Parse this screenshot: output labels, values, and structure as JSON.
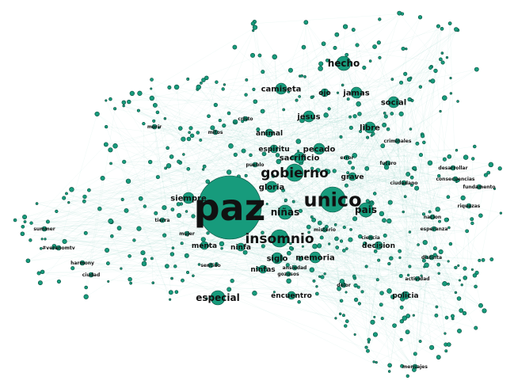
{
  "graph": {
    "colors": {
      "node": "#179b7c",
      "node_stroke": "#0a4d3e",
      "edge": "#2bb08d",
      "label": "#111111",
      "background": "#ffffff"
    },
    "labels": [
      {
        "text": "paz",
        "rank": 1
      },
      {
        "text": "unico",
        "rank": 2
      },
      {
        "text": "gobierno",
        "rank": 3
      },
      {
        "text": "insomnio",
        "rank": 3
      },
      {
        "text": "niñas",
        "rank": 4
      },
      {
        "text": "especial",
        "rank": 4
      },
      {
        "text": "hecho",
        "rank": 4
      },
      {
        "text": "pais",
        "rank": 4
      },
      {
        "text": "memoria",
        "rank": 5
      },
      {
        "text": "jesus",
        "rank": 5
      },
      {
        "text": "libre",
        "rank": 5
      },
      {
        "text": "social",
        "rank": 5
      },
      {
        "text": "pecado",
        "rank": 5
      },
      {
        "text": "sacrificio",
        "rank": 5
      },
      {
        "text": "gloria",
        "rank": 5
      },
      {
        "text": "siempre",
        "rank": 5
      },
      {
        "text": "siglo",
        "rank": 5
      },
      {
        "text": "camiseta",
        "rank": 5
      },
      {
        "text": "jamas",
        "rank": 5
      },
      {
        "text": "grave",
        "rank": 6
      },
      {
        "text": "animal",
        "rank": 6
      },
      {
        "text": "espiritu",
        "rank": 6
      },
      {
        "text": "ojo",
        "rank": 6
      },
      {
        "text": "encuentro",
        "rank": 6
      },
      {
        "text": "decision",
        "rank": 6
      },
      {
        "text": "policia",
        "rank": 6
      },
      {
        "text": "ciudad",
        "rank": 7
      },
      {
        "text": "criminales",
        "rank": 7
      },
      {
        "text": "mitos",
        "rank": 7
      },
      {
        "text": "actividad",
        "rank": 7
      },
      {
        "text": "distinta",
        "rank": 7
      },
      {
        "text": "mensajes",
        "rank": 7
      },
      {
        "text": "harmony",
        "rank": 7
      },
      {
        "text": "#veranomtv",
        "rank": 7
      },
      {
        "text": "summer",
        "rank": 7
      },
      {
        "text": "ninfa",
        "rank": 6
      },
      {
        "text": "ninfas",
        "rank": 6
      },
      {
        "text": "gozosos",
        "rank": 7
      },
      {
        "text": "ansiedad",
        "rank": 7
      },
      {
        "text": "menta",
        "rank": 6
      },
      {
        "text": "consecuencias",
        "rank": 7
      },
      {
        "text": "fundamento",
        "rank": 7
      },
      {
        "text": "ciudadano",
        "rank": 7
      },
      {
        "text": "riquezas",
        "rank": 7
      },
      {
        "text": "desarrollar",
        "rank": 7
      },
      {
        "text": "morir",
        "rank": 7
      },
      {
        "text": "misterio",
        "rank": 7
      },
      {
        "text": "error",
        "rank": 7
      },
      {
        "text": "mujer",
        "rank": 7
      },
      {
        "text": "pueblo",
        "rank": 7
      },
      {
        "text": "ciencia",
        "rank": 7
      },
      {
        "text": "esperanza",
        "rank": 7
      },
      {
        "text": "cristo",
        "rank": 7
      },
      {
        "text": "sentido",
        "rank": 7
      },
      {
        "text": "dolor",
        "rank": 7
      },
      {
        "text": "futuro",
        "rank": 7
      },
      {
        "text": "tierra",
        "rank": 7
      },
      {
        "text": "nacion",
        "rank": 7
      }
    ]
  }
}
